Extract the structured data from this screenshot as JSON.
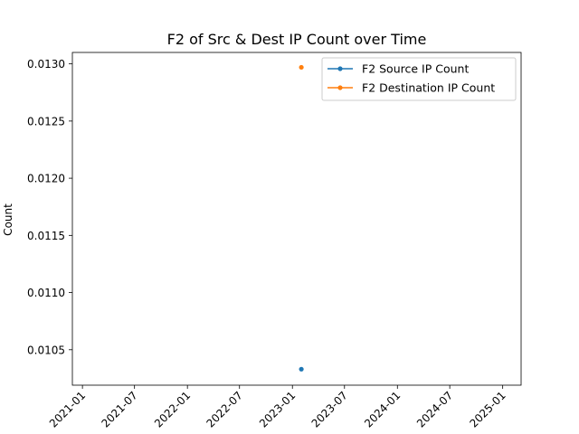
{
  "chart_data": {
    "type": "line",
    "title": "F2 of Src & Dest IP Count over Time",
    "xlabel": "",
    "ylabel": "Count",
    "x_ticks": [
      "2021-01",
      "2021-07",
      "2022-01",
      "2022-07",
      "2023-01",
      "2023-07",
      "2024-01",
      "2024-07",
      "2025-01"
    ],
    "x_tick_dates": [
      "2021-01-01",
      "2021-07-01",
      "2022-01-01",
      "2022-07-01",
      "2023-01-01",
      "2023-07-01",
      "2024-01-01",
      "2024-07-01",
      "2025-01-01"
    ],
    "xlim": [
      "2020-11-27",
      "2025-03-06"
    ],
    "y_ticks": [
      0.0105,
      0.011,
      0.0115,
      0.012,
      0.0125,
      0.013
    ],
    "y_tick_labels": [
      "0.0105",
      "0.0110",
      "0.0115",
      "0.0120",
      "0.0125",
      "0.0130"
    ],
    "ylim": [
      0.01019,
      0.0131
    ],
    "grid": false,
    "legend_position": "upper-right",
    "series": [
      {
        "name": "F2 Source IP Count",
        "color": "#1f77b4",
        "points": [
          {
            "x": "2023-02-01",
            "y": 0.01033
          }
        ]
      },
      {
        "name": "F2 Destination IP Count",
        "color": "#ff7f0e",
        "points": [
          {
            "x": "2023-02-01",
            "y": 0.01297
          }
        ]
      }
    ]
  }
}
